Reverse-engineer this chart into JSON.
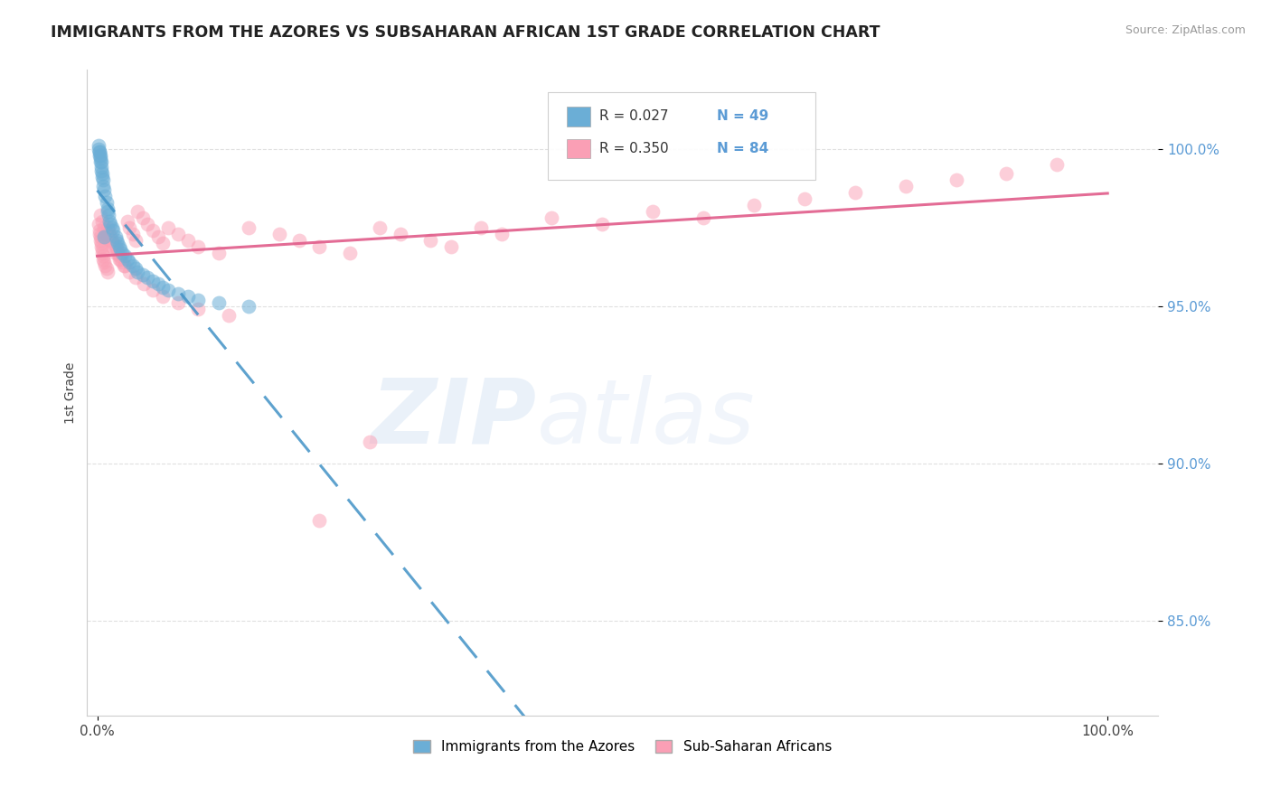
{
  "title": "IMMIGRANTS FROM THE AZORES VS SUBSAHARAN AFRICAN 1ST GRADE CORRELATION CHART",
  "source": "Source: ZipAtlas.com",
  "ylabel": "1st Grade",
  "xlim": [
    -0.01,
    1.05
  ],
  "ylim": [
    0.82,
    1.025
  ],
  "ytick_values": [
    0.85,
    0.9,
    0.95,
    1.0
  ],
  "ytick_labels": [
    "85.0%",
    "90.0%",
    "95.0%",
    "100.0%"
  ],
  "legend_r1": "R = 0.027",
  "legend_n1": "N = 49",
  "legend_r2": "R = 0.350",
  "legend_n2": "N = 84",
  "color_blue": "#6baed6",
  "color_pink": "#fa9fb5",
  "color_blue_line": "#4292c6",
  "color_pink_line": "#e05c8a",
  "blue_x": [
    0.001,
    0.002,
    0.002,
    0.003,
    0.003,
    0.004,
    0.004,
    0.005,
    0.005,
    0.006,
    0.006,
    0.007,
    0.008,
    0.009,
    0.01,
    0.01,
    0.011,
    0.012,
    0.013,
    0.015,
    0.016,
    0.018,
    0.019,
    0.02,
    0.022,
    0.023,
    0.025,
    0.027,
    0.03,
    0.032,
    0.035,
    0.038,
    0.04,
    0.045,
    0.05,
    0.055,
    0.06,
    0.065,
    0.07,
    0.08,
    0.09,
    0.1,
    0.12,
    0.15,
    0.0015,
    0.002,
    0.003,
    0.004,
    0.007
  ],
  "blue_y": [
    1.001,
    0.999,
    0.998,
    0.997,
    0.996,
    0.994,
    0.993,
    0.992,
    0.991,
    0.99,
    0.988,
    0.987,
    0.985,
    0.983,
    0.981,
    0.98,
    0.979,
    0.977,
    0.976,
    0.975,
    0.974,
    0.972,
    0.971,
    0.97,
    0.969,
    0.968,
    0.967,
    0.966,
    0.965,
    0.964,
    0.963,
    0.962,
    0.961,
    0.96,
    0.959,
    0.958,
    0.957,
    0.956,
    0.955,
    0.954,
    0.953,
    0.952,
    0.951,
    0.95,
    1.0,
    0.999,
    0.998,
    0.996,
    0.972
  ],
  "pink_x": [
    0.001,
    0.002,
    0.002,
    0.003,
    0.003,
    0.004,
    0.004,
    0.005,
    0.005,
    0.006,
    0.006,
    0.007,
    0.008,
    0.009,
    0.01,
    0.01,
    0.011,
    0.012,
    0.013,
    0.015,
    0.016,
    0.018,
    0.019,
    0.02,
    0.022,
    0.023,
    0.025,
    0.027,
    0.03,
    0.032,
    0.035,
    0.038,
    0.04,
    0.045,
    0.05,
    0.055,
    0.06,
    0.065,
    0.07,
    0.08,
    0.09,
    0.1,
    0.12,
    0.15,
    0.18,
    0.2,
    0.22,
    0.25,
    0.28,
    0.3,
    0.33,
    0.35,
    0.38,
    0.4,
    0.45,
    0.5,
    0.55,
    0.6,
    0.65,
    0.7,
    0.75,
    0.8,
    0.85,
    0.9,
    0.95,
    0.003,
    0.005,
    0.007,
    0.009,
    0.012,
    0.015,
    0.018,
    0.022,
    0.026,
    0.032,
    0.038,
    0.046,
    0.055,
    0.065,
    0.08,
    0.1,
    0.13,
    0.27,
    0.22
  ],
  "pink_y": [
    0.976,
    0.974,
    0.973,
    0.972,
    0.971,
    0.97,
    0.969,
    0.968,
    0.967,
    0.966,
    0.965,
    0.964,
    0.963,
    0.962,
    0.961,
    0.975,
    0.974,
    0.973,
    0.972,
    0.971,
    0.97,
    0.969,
    0.968,
    0.967,
    0.966,
    0.965,
    0.964,
    0.963,
    0.977,
    0.975,
    0.973,
    0.971,
    0.98,
    0.978,
    0.976,
    0.974,
    0.972,
    0.97,
    0.975,
    0.973,
    0.971,
    0.969,
    0.967,
    0.975,
    0.973,
    0.971,
    0.969,
    0.967,
    0.975,
    0.973,
    0.971,
    0.969,
    0.975,
    0.973,
    0.978,
    0.976,
    0.98,
    0.978,
    0.982,
    0.984,
    0.986,
    0.988,
    0.99,
    0.992,
    0.995,
    0.979,
    0.977,
    0.975,
    0.973,
    0.971,
    0.969,
    0.967,
    0.965,
    0.963,
    0.961,
    0.959,
    0.957,
    0.955,
    0.953,
    0.951,
    0.949,
    0.947,
    0.907,
    0.882
  ]
}
